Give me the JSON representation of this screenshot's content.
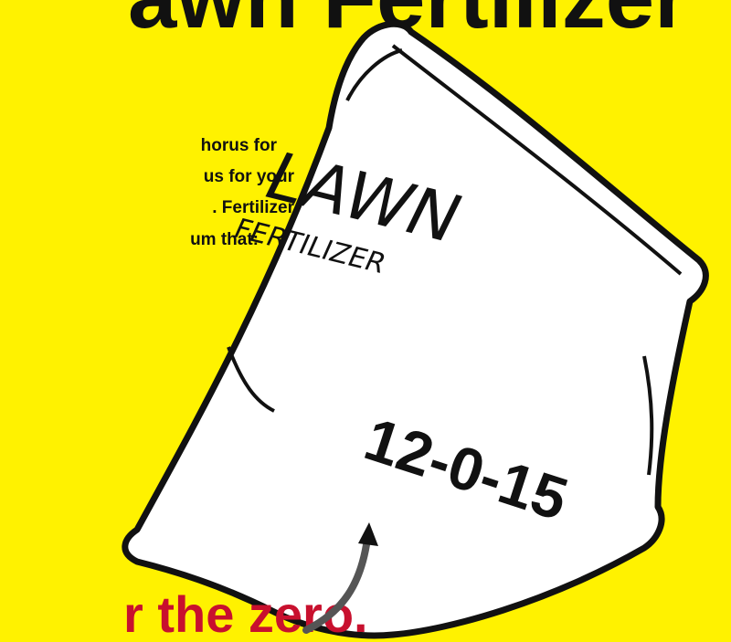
{
  "title": "awn Fertilizer",
  "body_lines": [
    "horus for",
    "us for your",
    ". Fertilizer",
    "um that:"
  ],
  "callout": "r the zero.",
  "bag": {
    "label_top": "LAWN",
    "label_bottom": "FERTILIZER",
    "numbers": "12-0-15"
  }
}
